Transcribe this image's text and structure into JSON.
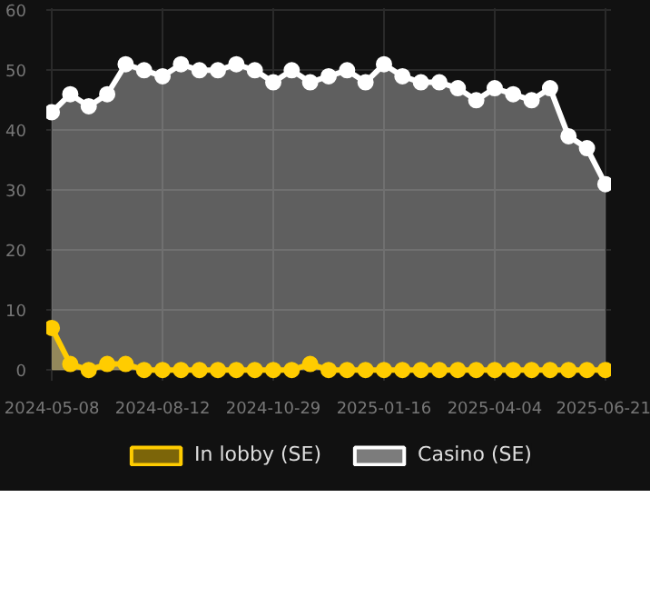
{
  "chart_data": {
    "type": "area",
    "categories": [
      "2024-05-08",
      null,
      null,
      null,
      null,
      null,
      "2024-08-12",
      null,
      null,
      null,
      null,
      null,
      "2024-10-29",
      null,
      null,
      null,
      null,
      null,
      "2025-01-16",
      null,
      null,
      null,
      null,
      null,
      "2025-04-04",
      null,
      null,
      null,
      null,
      null,
      "2025-06-21"
    ],
    "series": [
      {
        "name": "In lobby (SE)",
        "color": "#ffcc00",
        "values": [
          7,
          1,
          0,
          1,
          1,
          0,
          0,
          0,
          0,
          0,
          0,
          0,
          0,
          0,
          1,
          0,
          0,
          0,
          0,
          0,
          0,
          0,
          0,
          0,
          0,
          0,
          0,
          0,
          0,
          0,
          0
        ]
      },
      {
        "name": "Casino (SE)",
        "color": "#ffffff",
        "values": [
          43,
          46,
          44,
          46,
          51,
          50,
          49,
          51,
          50,
          50,
          51,
          50,
          48,
          50,
          48,
          49,
          50,
          48,
          51,
          49,
          48,
          48,
          47,
          45,
          47,
          46,
          45,
          47,
          39,
          37,
          31
        ]
      }
    ],
    "ylim": [
      0,
      60
    ],
    "yticks": [
      0,
      10,
      20,
      30,
      40,
      50,
      60
    ],
    "grid": true,
    "legend": "bottom",
    "marker": "circle"
  }
}
